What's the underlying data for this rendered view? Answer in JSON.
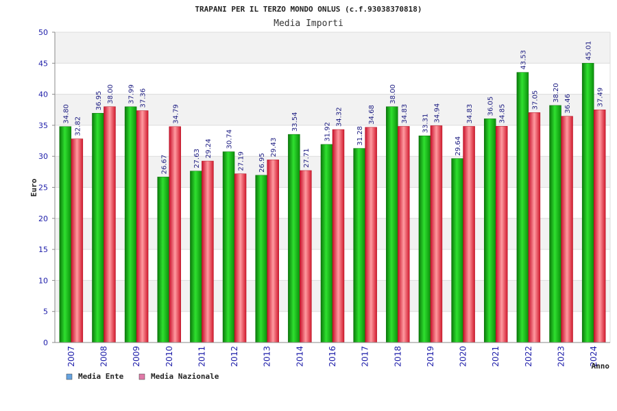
{
  "chart_data": {
    "type": "bar",
    "title": "TRAPANI PER IL TERZO MONDO ONLUS (c.f.93038370818)",
    "subtitle": "Media Importi",
    "ylabel": "Euro",
    "xlabel": "Anno",
    "ylim": [
      0,
      50
    ],
    "yticks": [
      "0",
      "5",
      "10",
      "15",
      "20",
      "25",
      "30",
      "35",
      "40",
      "45",
      "50"
    ],
    "grid": true,
    "legend_position": "bottom-left",
    "categories": [
      "2007",
      "2008",
      "2009",
      "2010",
      "2011",
      "2012",
      "2013",
      "2014",
      "2016",
      "2017",
      "2018",
      "2019",
      "2020",
      "2021",
      "2022",
      "2023",
      "2024"
    ],
    "series": [
      {
        "name": "Media Ente",
        "color": "#13c013",
        "legend_color": "#66a3e0",
        "values": [
          34.8,
          36.95,
          37.99,
          26.67,
          27.63,
          30.74,
          26.95,
          33.54,
          31.92,
          31.28,
          38.0,
          33.31,
          29.64,
          36.05,
          43.53,
          38.2,
          45.01
        ],
        "labels": [
          "34.80",
          "36.95",
          "37.99",
          "26.67",
          "27.63",
          "30.74",
          "26.95",
          "33.54",
          "31.92",
          "31.28",
          "38.00",
          "33.31",
          "29.64",
          "36.05",
          "43.53",
          "38.20",
          "45.01"
        ]
      },
      {
        "name": "Media Nazionale",
        "color": "#e8303a",
        "legend_color": "#e07aa8",
        "values": [
          32.82,
          38.0,
          37.36,
          34.79,
          29.24,
          27.19,
          29.43,
          27.71,
          34.32,
          34.68,
          34.83,
          34.94,
          34.83,
          34.85,
          37.05,
          36.46,
          37.49
        ],
        "labels": [
          "32.82",
          "38.00",
          "37.36",
          "34.79",
          "29.24",
          "27.19",
          "29.43",
          "27.71",
          "34.32",
          "34.68",
          "34.83",
          "34.94",
          "34.83",
          "34.85",
          "37.05",
          "36.46",
          "37.49"
        ]
      }
    ]
  }
}
